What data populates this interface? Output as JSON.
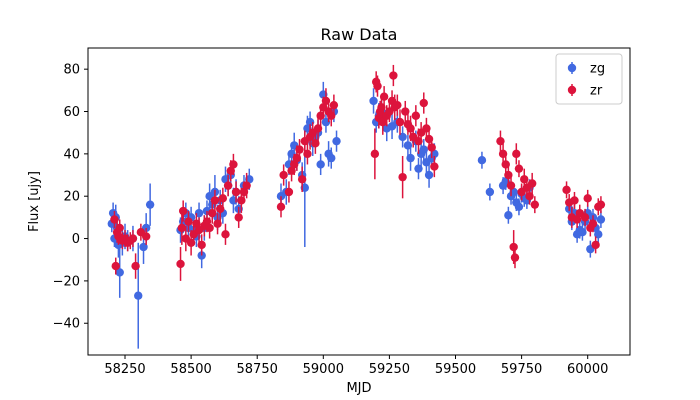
{
  "chart_data": {
    "type": "scatter",
    "title": "Raw Data",
    "xlabel": "MJD",
    "ylabel": "Flux [ujy]",
    "xlim": [
      58110,
      60160
    ],
    "ylim": [
      -55,
      90
    ],
    "x_ticks": [
      58250,
      58500,
      58750,
      59000,
      59250,
      59500,
      59750,
      60000
    ],
    "y_ticks": [
      -40,
      -20,
      0,
      20,
      40,
      60,
      80
    ],
    "grid": false,
    "legend_position": "top-right",
    "series": [
      {
        "name": "zg",
        "color": "#4169e1",
        "points": [
          [
            58200,
            7,
            4
          ],
          [
            58205,
            12,
            5
          ],
          [
            58210,
            0,
            4
          ],
          [
            58215,
            10,
            6
          ],
          [
            58220,
            5,
            5
          ],
          [
            58225,
            -3,
            6
          ],
          [
            58230,
            -16,
            12
          ],
          [
            58240,
            -2,
            6
          ],
          [
            58250,
            1,
            6
          ],
          [
            58260,
            -1,
            5
          ],
          [
            58280,
            0,
            6
          ],
          [
            58300,
            -27,
            25
          ],
          [
            58320,
            -4,
            8
          ],
          [
            58330,
            5,
            7
          ],
          [
            58345,
            16,
            10
          ],
          [
            58460,
            4,
            6
          ],
          [
            58470,
            8,
            5
          ],
          [
            58480,
            12,
            5
          ],
          [
            58490,
            5,
            5
          ],
          [
            58500,
            10,
            5
          ],
          [
            58510,
            4,
            6
          ],
          [
            58520,
            1,
            5
          ],
          [
            58530,
            12,
            5
          ],
          [
            58540,
            -8,
            6
          ],
          [
            58550,
            5,
            6
          ],
          [
            58560,
            13,
            5
          ],
          [
            58570,
            20,
            6
          ],
          [
            58580,
            16,
            6
          ],
          [
            58590,
            22,
            8
          ],
          [
            58600,
            10,
            6
          ],
          [
            58610,
            18,
            5
          ],
          [
            58620,
            12,
            5
          ],
          [
            58630,
            28,
            6
          ],
          [
            58640,
            25,
            5
          ],
          [
            58650,
            30,
            6
          ],
          [
            58660,
            18,
            6
          ],
          [
            58670,
            22,
            6
          ],
          [
            58680,
            14,
            6
          ],
          [
            58700,
            25,
            5
          ],
          [
            58720,
            28,
            5
          ],
          [
            58840,
            20,
            6
          ],
          [
            58860,
            22,
            6
          ],
          [
            58870,
            35,
            5
          ],
          [
            58880,
            40,
            5
          ],
          [
            58890,
            44,
            6
          ],
          [
            58900,
            37,
            5
          ],
          [
            58920,
            30,
            6
          ],
          [
            58930,
            24,
            28
          ],
          [
            58940,
            52,
            6
          ],
          [
            58950,
            55,
            5
          ],
          [
            58960,
            45,
            6
          ],
          [
            58970,
            48,
            5
          ],
          [
            58980,
            50,
            6
          ],
          [
            58990,
            35,
            5
          ],
          [
            59000,
            68,
            6
          ],
          [
            59010,
            55,
            5
          ],
          [
            59020,
            40,
            6
          ],
          [
            59030,
            38,
            5
          ],
          [
            59040,
            60,
            5
          ],
          [
            59050,
            46,
            5
          ],
          [
            59190,
            65,
            6
          ],
          [
            59200,
            55,
            5
          ],
          [
            59210,
            58,
            6
          ],
          [
            59220,
            60,
            5
          ],
          [
            59240,
            52,
            6
          ],
          [
            59260,
            53,
            6
          ],
          [
            59280,
            55,
            5
          ],
          [
            59300,
            48,
            5
          ],
          [
            59320,
            44,
            5
          ],
          [
            59330,
            38,
            6
          ],
          [
            59350,
            46,
            5
          ],
          [
            59360,
            33,
            5
          ],
          [
            59370,
            40,
            6
          ],
          [
            59380,
            42,
            5
          ],
          [
            59390,
            36,
            5
          ],
          [
            59400,
            30,
            6
          ],
          [
            59410,
            38,
            5
          ],
          [
            59420,
            40,
            5
          ],
          [
            59600,
            37,
            4
          ],
          [
            59630,
            22,
            4
          ],
          [
            59680,
            25,
            4
          ],
          [
            59690,
            27,
            4
          ],
          [
            59700,
            11,
            4
          ],
          [
            59710,
            20,
            4
          ],
          [
            59720,
            22,
            4
          ],
          [
            59730,
            17,
            4
          ],
          [
            59740,
            15,
            4
          ],
          [
            59750,
            21,
            4
          ],
          [
            59760,
            19,
            4
          ],
          [
            59770,
            18,
            4
          ],
          [
            59780,
            24,
            4
          ],
          [
            59930,
            14,
            4
          ],
          [
            59940,
            8,
            4
          ],
          [
            59950,
            12,
            4
          ],
          [
            59960,
            2,
            4
          ],
          [
            59970,
            4,
            4
          ],
          [
            59980,
            3,
            4
          ],
          [
            59990,
            8,
            4
          ],
          [
            60000,
            12,
            4
          ],
          [
            60010,
            -5,
            4
          ],
          [
            60020,
            10,
            4
          ],
          [
            60030,
            5,
            4
          ],
          [
            60040,
            2,
            4
          ],
          [
            60050,
            9,
            4
          ]
        ]
      },
      {
        "name": "zr",
        "color": "#dc143c",
        "points": [
          [
            58210,
            9,
            4
          ],
          [
            58215,
            -13,
            4
          ],
          [
            58220,
            3,
            5
          ],
          [
            58225,
            1,
            4
          ],
          [
            58230,
            5,
            4
          ],
          [
            58240,
            -1,
            4
          ],
          [
            58250,
            0,
            4
          ],
          [
            58260,
            -2,
            4
          ],
          [
            58270,
            -1,
            4
          ],
          [
            58280,
            0,
            4
          ],
          [
            58290,
            -13,
            6
          ],
          [
            58310,
            3,
            4
          ],
          [
            58330,
            1,
            4
          ],
          [
            58460,
            -12,
            8
          ],
          [
            58465,
            5,
            8
          ],
          [
            58470,
            13,
            5
          ],
          [
            58480,
            0,
            6
          ],
          [
            58490,
            8,
            5
          ],
          [
            58500,
            -2,
            6
          ],
          [
            58510,
            2,
            5
          ],
          [
            58520,
            7,
            5
          ],
          [
            58530,
            4,
            6
          ],
          [
            58540,
            -3,
            5
          ],
          [
            58550,
            6,
            5
          ],
          [
            58560,
            8,
            5
          ],
          [
            58570,
            5,
            5
          ],
          [
            58580,
            12,
            5
          ],
          [
            58590,
            18,
            5
          ],
          [
            58600,
            7,
            5
          ],
          [
            58610,
            14,
            6
          ],
          [
            58620,
            19,
            5
          ],
          [
            58630,
            2,
            5
          ],
          [
            58640,
            25,
            5
          ],
          [
            58650,
            32,
            5
          ],
          [
            58660,
            35,
            5
          ],
          [
            58670,
            22,
            5
          ],
          [
            58680,
            10,
            5
          ],
          [
            58690,
            18,
            6
          ],
          [
            58700,
            22,
            5
          ],
          [
            58710,
            25,
            6
          ],
          [
            58840,
            15,
            5
          ],
          [
            58850,
            30,
            5
          ],
          [
            58870,
            22,
            5
          ],
          [
            58880,
            32,
            5
          ],
          [
            58890,
            35,
            5
          ],
          [
            58900,
            38,
            6
          ],
          [
            58910,
            42,
            5
          ],
          [
            58920,
            28,
            6
          ],
          [
            58930,
            46,
            5
          ],
          [
            58940,
            40,
            5
          ],
          [
            58950,
            48,
            6
          ],
          [
            58960,
            50,
            5
          ],
          [
            58970,
            45,
            5
          ],
          [
            58980,
            52,
            6
          ],
          [
            58990,
            58,
            5
          ],
          [
            59000,
            62,
            5
          ],
          [
            59010,
            65,
            6
          ],
          [
            59020,
            60,
            5
          ],
          [
            59030,
            58,
            5
          ],
          [
            59040,
            63,
            5
          ],
          [
            59195,
            40,
            12
          ],
          [
            59200,
            74,
            5
          ],
          [
            59205,
            72,
            5
          ],
          [
            59210,
            57,
            5
          ],
          [
            59215,
            60,
            5
          ],
          [
            59220,
            62,
            5
          ],
          [
            59225,
            55,
            6
          ],
          [
            59230,
            67,
            5
          ],
          [
            59240,
            58,
            5
          ],
          [
            59250,
            60,
            5
          ],
          [
            59260,
            65,
            5
          ],
          [
            59265,
            77,
            5
          ],
          [
            59270,
            62,
            6
          ],
          [
            59280,
            63,
            5
          ],
          [
            59290,
            55,
            6
          ],
          [
            59300,
            29,
            10
          ],
          [
            59310,
            60,
            5
          ],
          [
            59320,
            54,
            5
          ],
          [
            59330,
            52,
            6
          ],
          [
            59340,
            48,
            5
          ],
          [
            59350,
            58,
            5
          ],
          [
            59360,
            46,
            6
          ],
          [
            59370,
            50,
            5
          ],
          [
            59380,
            64,
            5
          ],
          [
            59390,
            52,
            5
          ],
          [
            59400,
            47,
            5
          ],
          [
            59410,
            43,
            5
          ],
          [
            59420,
            34,
            5
          ],
          [
            59670,
            46,
            5
          ],
          [
            59680,
            40,
            5
          ],
          [
            59690,
            35,
            4
          ],
          [
            59700,
            30,
            4
          ],
          [
            59710,
            25,
            5
          ],
          [
            59720,
            -4,
            8
          ],
          [
            59725,
            -9,
            5
          ],
          [
            59730,
            40,
            5
          ],
          [
            59740,
            33,
            4
          ],
          [
            59750,
            22,
            4
          ],
          [
            59760,
            28,
            5
          ],
          [
            59770,
            24,
            4
          ],
          [
            59780,
            20,
            4
          ],
          [
            59790,
            26,
            5
          ],
          [
            59800,
            16,
            4
          ],
          [
            59920,
            23,
            4
          ],
          [
            59930,
            17,
            4
          ],
          [
            59940,
            10,
            5
          ],
          [
            59950,
            18,
            4
          ],
          [
            59960,
            9,
            4
          ],
          [
            59970,
            12,
            4
          ],
          [
            59990,
            10,
            4
          ],
          [
            60000,
            19,
            4
          ],
          [
            60010,
            5,
            4
          ],
          [
            60020,
            7,
            4
          ],
          [
            60030,
            -3,
            4
          ],
          [
            60040,
            15,
            4
          ],
          [
            60050,
            16,
            4
          ]
        ]
      }
    ]
  }
}
